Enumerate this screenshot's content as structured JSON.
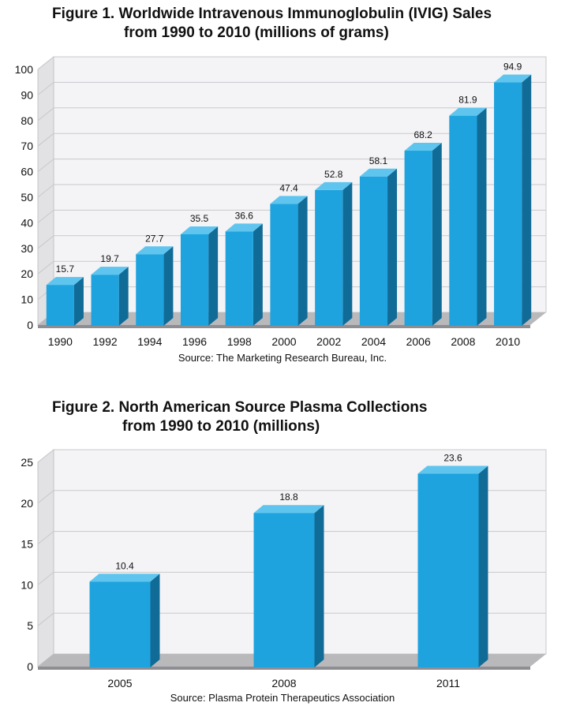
{
  "chart_data": [
    {
      "type": "bar",
      "title_line1": "Figure 1. Worldwide Intravenous Immunoglobulin (IVIG) Sales",
      "title_line2": "from 1990 to 2010 (millions of grams)",
      "source": "Source:  The Marketing Research Bureau, Inc.",
      "categories": [
        "1990",
        "1992",
        "1994",
        "1996",
        "1998",
        "2000",
        "2002",
        "2004",
        "2006",
        "2008",
        "2010"
      ],
      "values": [
        15.7,
        19.7,
        27.7,
        35.5,
        36.6,
        47.4,
        52.8,
        58.1,
        68.2,
        81.9,
        94.9
      ],
      "data_labels": [
        "15.7",
        "19.7",
        "27.7",
        "35.5",
        "36.6",
        "47.4",
        "52.8",
        "58.1",
        "68.2",
        "81.9",
        "94.9"
      ],
      "yticks": [
        "0",
        "10",
        "20",
        "30",
        "40",
        "50",
        "60",
        "70",
        "80",
        "90",
        "100"
      ],
      "ylim": [
        0,
        100
      ],
      "grid": true,
      "bar_color": "#1ea3de"
    },
    {
      "type": "bar",
      "title_line1": "Figure 2. North American Source Plasma Collections",
      "title_line2": "from 1990 to 2010 (millions)",
      "source": "Source:  Plasma Protein Therapeutics Association",
      "categories": [
        "2005",
        "2008",
        "2011"
      ],
      "values": [
        10.4,
        18.8,
        23.6
      ],
      "data_labels": [
        "10.4",
        "18.8",
        "23.6"
      ],
      "yticks": [
        "0",
        "5",
        "10",
        "15",
        "20",
        "25"
      ],
      "ylim": [
        0,
        25
      ],
      "grid": true,
      "bar_color": "#1ea3de"
    }
  ]
}
